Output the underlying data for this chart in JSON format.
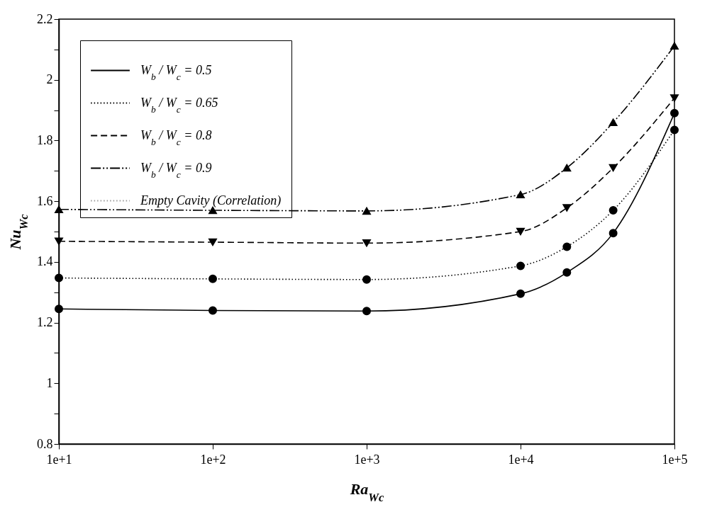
{
  "chart_data": {
    "type": "line",
    "xlabel": "Ra$_{Wc}$",
    "ylabel": "Nu$_{Wc}$",
    "x": [
      10,
      100,
      1000,
      10000,
      20000,
      40000,
      100000
    ],
    "log": "x",
    "xlim": [
      10,
      100000
    ],
    "xticks": [
      {
        "value": 10,
        "label": "1e+1"
      },
      {
        "value": 100,
        "label": "1e+2"
      },
      {
        "value": 1000,
        "label": "1e+3"
      },
      {
        "value": 10000,
        "label": "1e+4"
      },
      {
        "value": 100000,
        "label": "1e+5"
      }
    ],
    "ylim": [
      0.8,
      2.2
    ],
    "yticks": [
      0.8,
      {
        "value": 0.9,
        "label": null
      },
      1.0,
      {
        "value": 1.1,
        "label": null
      },
      1.2,
      {
        "value": 1.3,
        "label": null
      },
      1.4,
      {
        "value": 1.5,
        "label": null
      },
      1.6,
      {
        "value": 1.7,
        "label": null
      },
      1.8,
      {
        "value": 1.9,
        "label": null
      },
      2.0,
      {
        "value": 2.1,
        "label": null
      },
      2.2
    ],
    "grid": false,
    "legend": "top left",
    "series": [
      {
        "name": "W$_{b}$ / W$_{c}$ = 0.5",
        "color": "#000000",
        "marker": "circle",
        "line_style": "solid",
        "values": [
          1.245,
          1.24,
          1.238,
          1.295,
          1.365,
          1.495,
          1.89
        ]
      },
      {
        "name": "W$_{b}$ / W$_{c}$ = 0.65",
        "color": "#000000",
        "marker": "circle",
        "line_style": "dotted",
        "values": [
          1.347,
          1.344,
          1.342,
          1.387,
          1.45,
          1.57,
          1.835
        ]
      },
      {
        "name": "W$_{b}$ / W$_{c}$ = 0.8",
        "color": "#000000",
        "marker": "triangle-down",
        "line_style": "dashed",
        "values": [
          1.468,
          1.465,
          1.462,
          1.5,
          1.578,
          1.71,
          1.94
        ]
      },
      {
        "name": "W$_{b}$ / W$_{c}$ = 0.9",
        "color": "#000000",
        "marker": "triangle",
        "line_style": "dashdotdot",
        "values": [
          1.573,
          1.57,
          1.568,
          1.622,
          1.71,
          1.86,
          2.112
        ]
      },
      {
        "name": "Empty Cavity (Correlation)",
        "color": "#9a9a9a",
        "marker": "none",
        "line_style": "dotted",
        "values": [
          null,
          null,
          null,
          null,
          null,
          null,
          null
        ]
      }
    ]
  }
}
